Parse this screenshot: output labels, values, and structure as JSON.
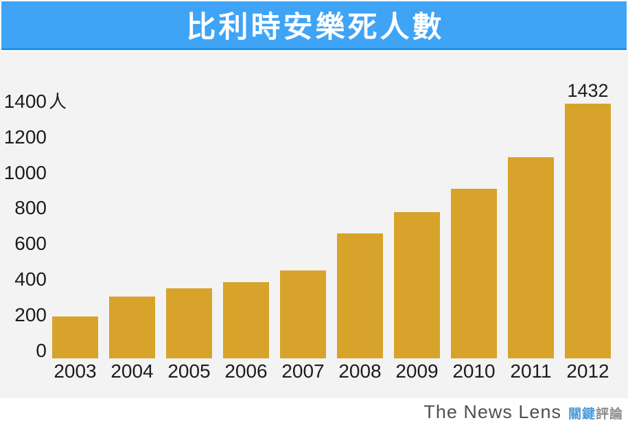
{
  "header": {
    "title": "比利時安樂死人數",
    "background_color": "#3fa3f6",
    "border_color": "#2391ea",
    "text_color": "#ffffff"
  },
  "chart_data": {
    "type": "bar",
    "title": "比利時安樂死人數",
    "categories": [
      "2003",
      "2004",
      "2005",
      "2006",
      "2007",
      "2008",
      "2009",
      "2010",
      "2011",
      "2012"
    ],
    "values": [
      235,
      349,
      393,
      429,
      495,
      704,
      822,
      953,
      1133,
      1432
    ],
    "xlabel": "",
    "ylabel": "人",
    "y_ticks": [
      {
        "label": "1400",
        "suffix": "人"
      },
      {
        "label": "1200"
      },
      {
        "label": "1000"
      },
      {
        "label": "800"
      },
      {
        "label": "600"
      },
      {
        "label": "400"
      },
      {
        "label": "200"
      },
      {
        "label": "0"
      }
    ],
    "ylim": [
      0,
      1450
    ],
    "grid": false,
    "legend": false,
    "bar_color": "#d7a32a",
    "background_color": "#f3f3f4",
    "data_label": {
      "category": "2012",
      "text": "1432"
    }
  },
  "footer": {
    "brand_latin": "The News Lens",
    "brand_cjk_primary": "關鍵",
    "brand_cjk_secondary": "評論",
    "brand_cjk_primary_color": "#4a9bd9",
    "brand_cjk_secondary_color": "#8c8c8c"
  }
}
